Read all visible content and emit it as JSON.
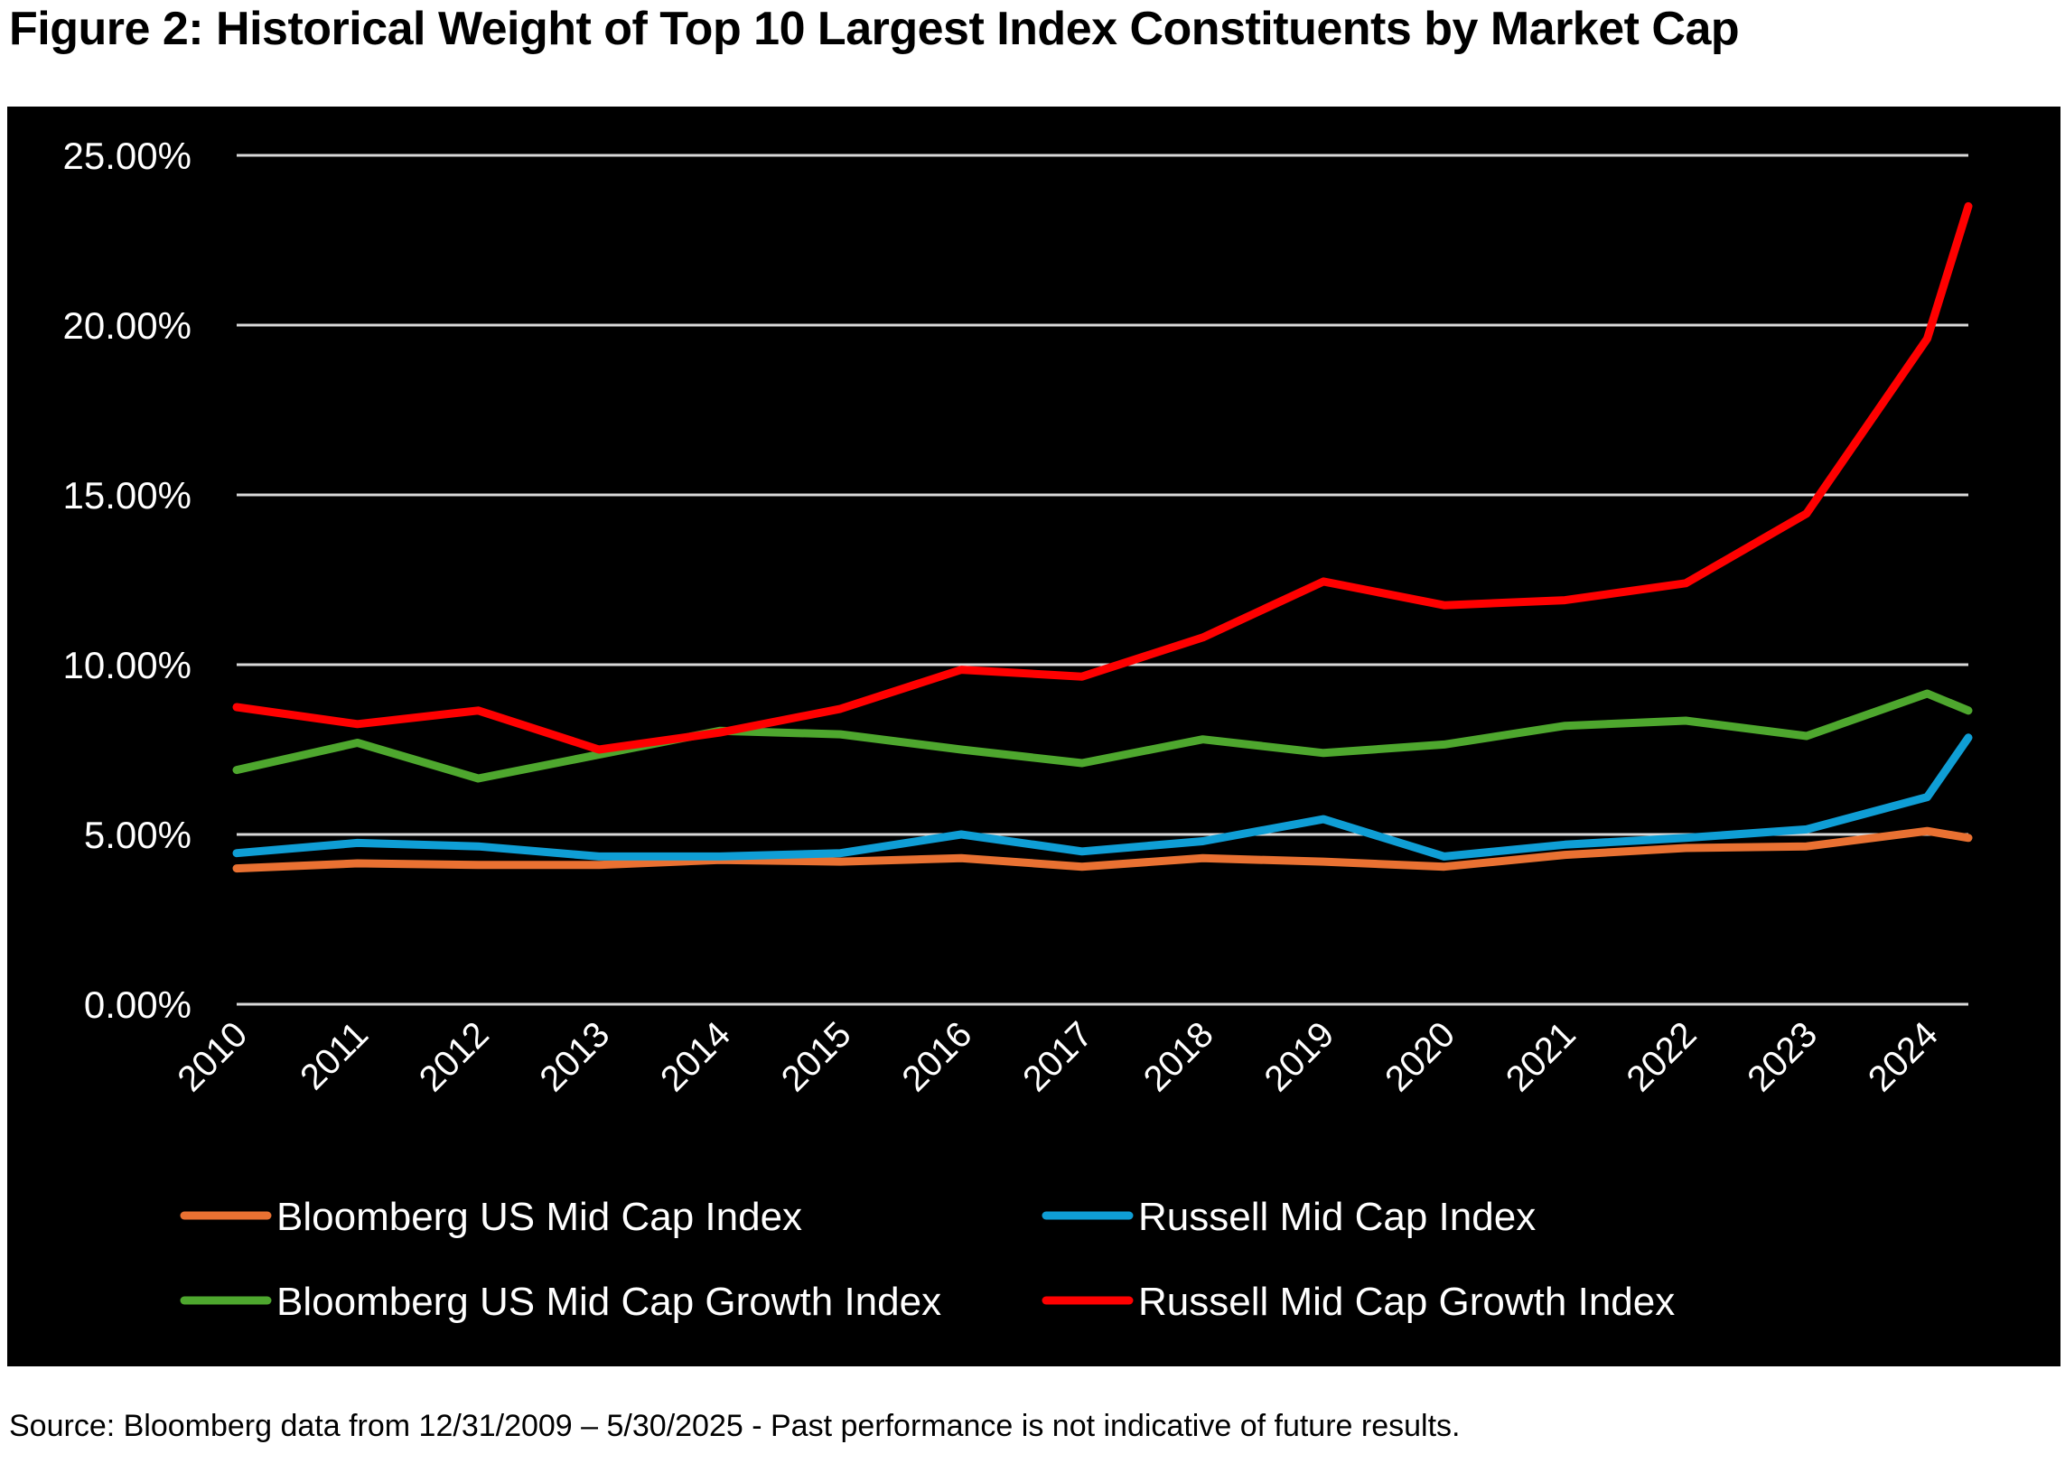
{
  "title": "Figure 2: Historical Weight of Top 10 Largest Index Constituents by Market Cap",
  "source_note": "Source: Bloomberg data from 12/31/2009 – 5/30/2025 - Past performance is not indicative of future results.",
  "chart_data": {
    "type": "line",
    "title": "Figure 2: Historical Weight of Top 10 Largest Index Constituents by Market Cap",
    "xlabel": "",
    "ylabel": "",
    "x": [
      2010,
      2011,
      2012,
      2013,
      2014,
      2015,
      2016,
      2017,
      2018,
      2019,
      2020,
      2021,
      2022,
      2023,
      2024,
      2024.34
    ],
    "x_tick_labels": [
      "2010",
      "2011",
      "2012",
      "2013",
      "2014",
      "2015",
      "2016",
      "2017",
      "2018",
      "2019",
      "2020",
      "2021",
      "2022",
      "2023",
      "2024"
    ],
    "y_tick_values": [
      0,
      5,
      10,
      15,
      20,
      25
    ],
    "y_tick_labels": [
      "0.00%",
      "5.00%",
      "10.00%",
      "15.00%",
      "20.00%",
      "25.00%"
    ],
    "ylim": [
      0,
      25
    ],
    "xlim": [
      2010,
      2024.34
    ],
    "grid": "horizontal",
    "background": "#000000",
    "gridline_color": "#d9d9d9",
    "legend_position": "bottom",
    "series": [
      {
        "name": "Bloomberg US Mid Cap Index",
        "color": "#e97132",
        "values": [
          4.0,
          4.15,
          4.1,
          4.1,
          4.25,
          4.2,
          4.3,
          4.05,
          4.3,
          4.2,
          4.05,
          4.4,
          4.6,
          4.65,
          5.1,
          4.9
        ]
      },
      {
        "name": "Russell Mid Cap Index",
        "color": "#0f9ed5",
        "values": [
          4.45,
          4.75,
          4.65,
          4.35,
          4.35,
          4.45,
          5.0,
          4.5,
          4.8,
          5.45,
          4.35,
          4.7,
          4.9,
          5.15,
          6.1,
          7.85
        ]
      },
      {
        "name": "Bloomberg US Mid Cap Growth Index",
        "color": "#4ea72e",
        "values": [
          6.9,
          7.7,
          6.65,
          7.35,
          8.05,
          7.95,
          7.5,
          7.1,
          7.8,
          7.4,
          7.65,
          8.2,
          8.35,
          7.9,
          9.15,
          8.65
        ]
      },
      {
        "name": "Russell Mid Cap Growth Index",
        "color": "#ff0000",
        "values": [
          8.75,
          8.25,
          8.65,
          7.5,
          8.0,
          8.7,
          9.85,
          9.65,
          10.8,
          12.45,
          11.75,
          11.9,
          12.4,
          14.45,
          19.6,
          23.5
        ]
      }
    ]
  }
}
